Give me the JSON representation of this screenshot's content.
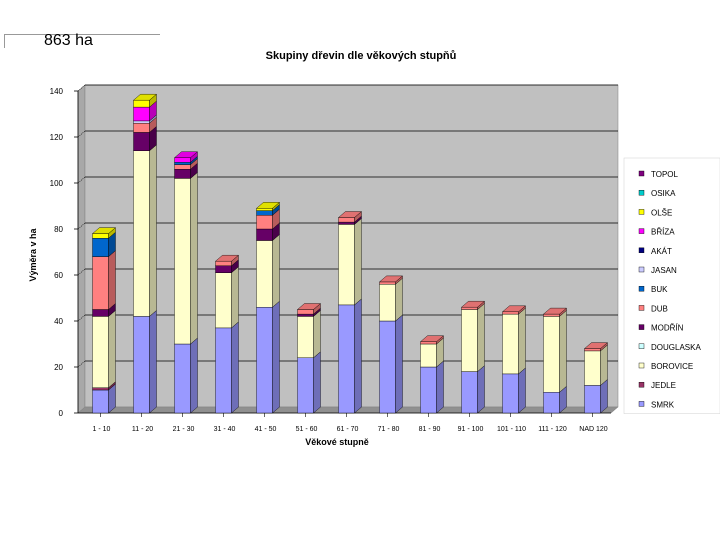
{
  "header": {
    "area_label": "863 ha"
  },
  "chart_data": {
    "type": "bar",
    "stacked": true,
    "title": "Skupiny dřevin dle věkových stupňů",
    "xlabel": "Věkové stupně",
    "ylabel": "Výměra v ha",
    "ylim": [
      0,
      140
    ],
    "yticks": [
      "0",
      "20",
      "40",
      "60",
      "80",
      "100",
      "120",
      "140"
    ],
    "legend_position": "right",
    "categories": [
      "1 - 10",
      "11 - 20",
      "21 - 30",
      "31 - 40",
      "41 - 50",
      "51 - 60",
      "61 - 70",
      "71 - 80",
      "81 - 90",
      "91 - 100",
      "101 - 110",
      "111 - 120",
      "NAD 120"
    ],
    "series": [
      {
        "name": "SMRK",
        "color": "#9999FF",
        "values": [
          10,
          42,
          30,
          37,
          46,
          24,
          47,
          40,
          20,
          18,
          17,
          9,
          12
        ]
      },
      {
        "name": "JEDLE",
        "color": "#993366",
        "values": [
          1,
          0,
          0,
          0,
          0,
          0,
          0,
          0,
          0,
          0,
          0,
          0,
          0
        ]
      },
      {
        "name": "BOROVICE",
        "color": "#FFFFCC",
        "values": [
          31,
          72,
          72,
          24,
          29,
          18,
          35,
          16,
          10,
          27,
          26,
          33,
          15
        ]
      },
      {
        "name": "DOUGLASKA",
        "color": "#CCFFFF",
        "values": [
          0,
          0,
          0,
          0,
          0,
          0,
          0,
          0,
          0,
          0,
          0,
          0,
          0
        ]
      },
      {
        "name": "MODŘÍN",
        "color": "#660066",
        "values": [
          3,
          8,
          4,
          3,
          5,
          1,
          1,
          0,
          0,
          0,
          0,
          0,
          0
        ]
      },
      {
        "name": "DUB",
        "color": "#FF8080",
        "values": [
          23,
          4,
          2,
          2,
          6,
          2,
          2,
          1,
          1,
          1,
          1,
          1,
          1
        ]
      },
      {
        "name": "BUK",
        "color": "#0066CC",
        "values": [
          8,
          0,
          1,
          0,
          2,
          0,
          0,
          0,
          0,
          0,
          0,
          0,
          0
        ]
      },
      {
        "name": "JASAN",
        "color": "#CCCCFF",
        "values": [
          0,
          1,
          0,
          0,
          0,
          0,
          0,
          0,
          0,
          0,
          0,
          0,
          0
        ]
      },
      {
        "name": "AKÁT",
        "color": "#000080",
        "values": [
          0,
          0,
          0,
          0,
          0,
          0,
          0,
          0,
          0,
          0,
          0,
          0,
          0
        ]
      },
      {
        "name": "BŘÍZA",
        "color": "#FF00FF",
        "values": [
          0,
          6,
          2,
          0,
          0,
          0,
          0,
          0,
          0,
          0,
          0,
          0,
          0
        ]
      },
      {
        "name": "OLŠE",
        "color": "#FFFF00",
        "values": [
          2,
          3,
          0,
          0,
          1,
          0,
          0,
          0,
          0,
          0,
          0,
          0,
          0
        ]
      },
      {
        "name": "OSIKA",
        "color": "#00CCCC",
        "values": [
          0,
          0,
          0,
          0,
          0,
          0,
          0,
          0,
          0,
          0,
          0,
          0,
          0
        ]
      },
      {
        "name": "TOPOL",
        "color": "#800080",
        "values": [
          0,
          0,
          0,
          0,
          0,
          0,
          0,
          0,
          0,
          0,
          0,
          0,
          0
        ]
      }
    ]
  }
}
